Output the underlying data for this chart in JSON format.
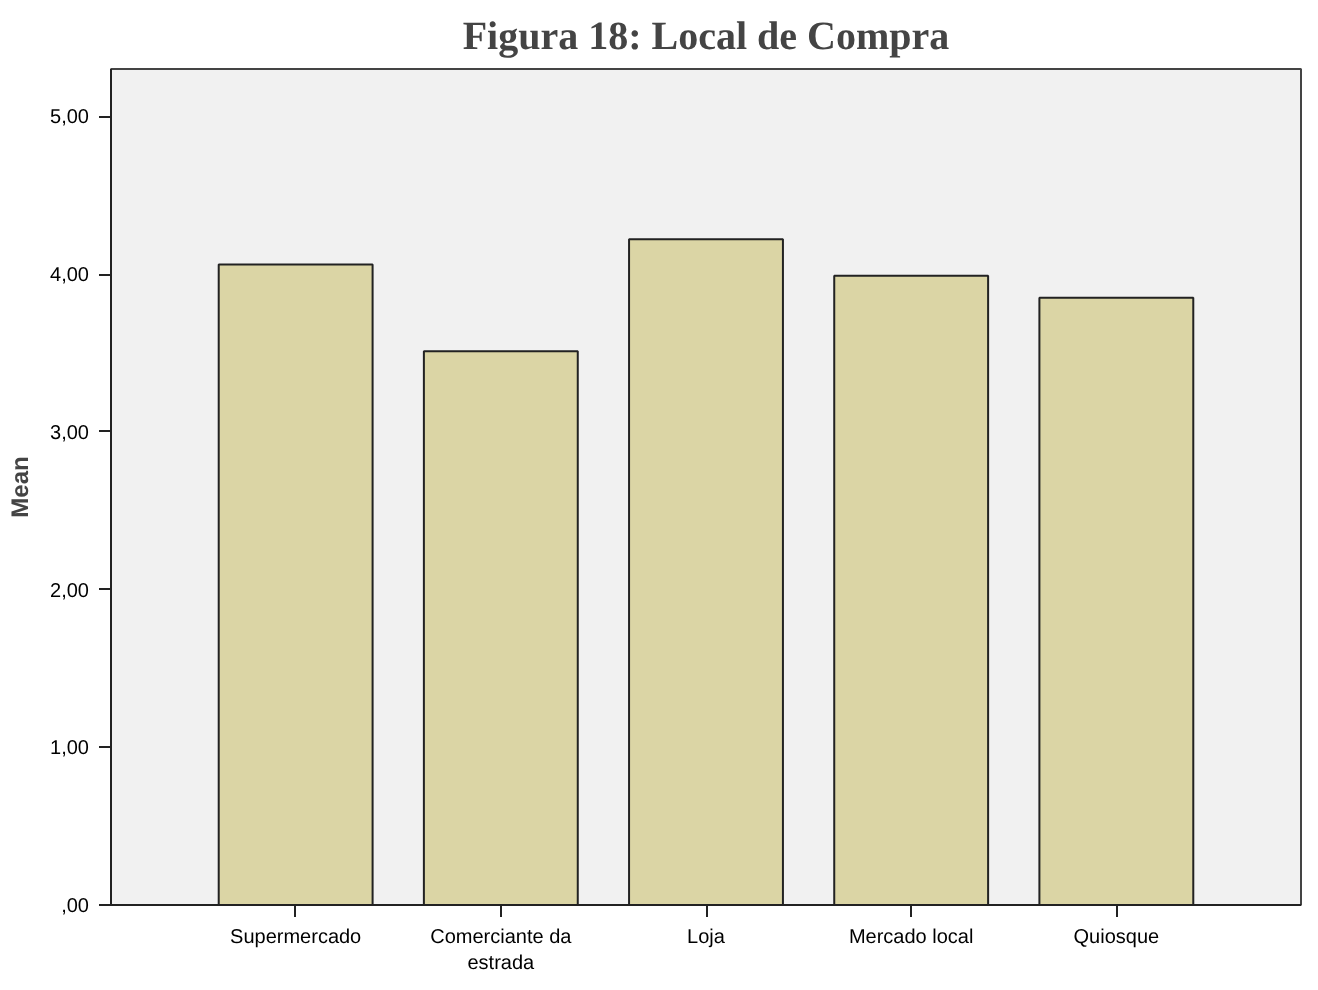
{
  "chart_data": {
    "type": "bar",
    "title": "Figura 18: Local de Compra",
    "ylabel": "Mean",
    "categories": [
      "Supermercado",
      "Comerciante da estrada",
      "Loja",
      "Mercado local",
      "Quiosque"
    ],
    "values": [
      4.06,
      3.51,
      4.22,
      3.99,
      3.85
    ],
    "color": "#dbd5a5",
    "ylim": [
      0,
      5.3
    ],
    "yticks": [
      {
        "value": 0,
        "label": ",00"
      },
      {
        "value": 1,
        "label": "1,00"
      },
      {
        "value": 2,
        "label": "2,00"
      },
      {
        "value": 3,
        "label": "3,00"
      },
      {
        "value": 4,
        "label": "4,00"
      },
      {
        "value": 5,
        "label": "5,00"
      }
    ],
    "grid": false
  }
}
